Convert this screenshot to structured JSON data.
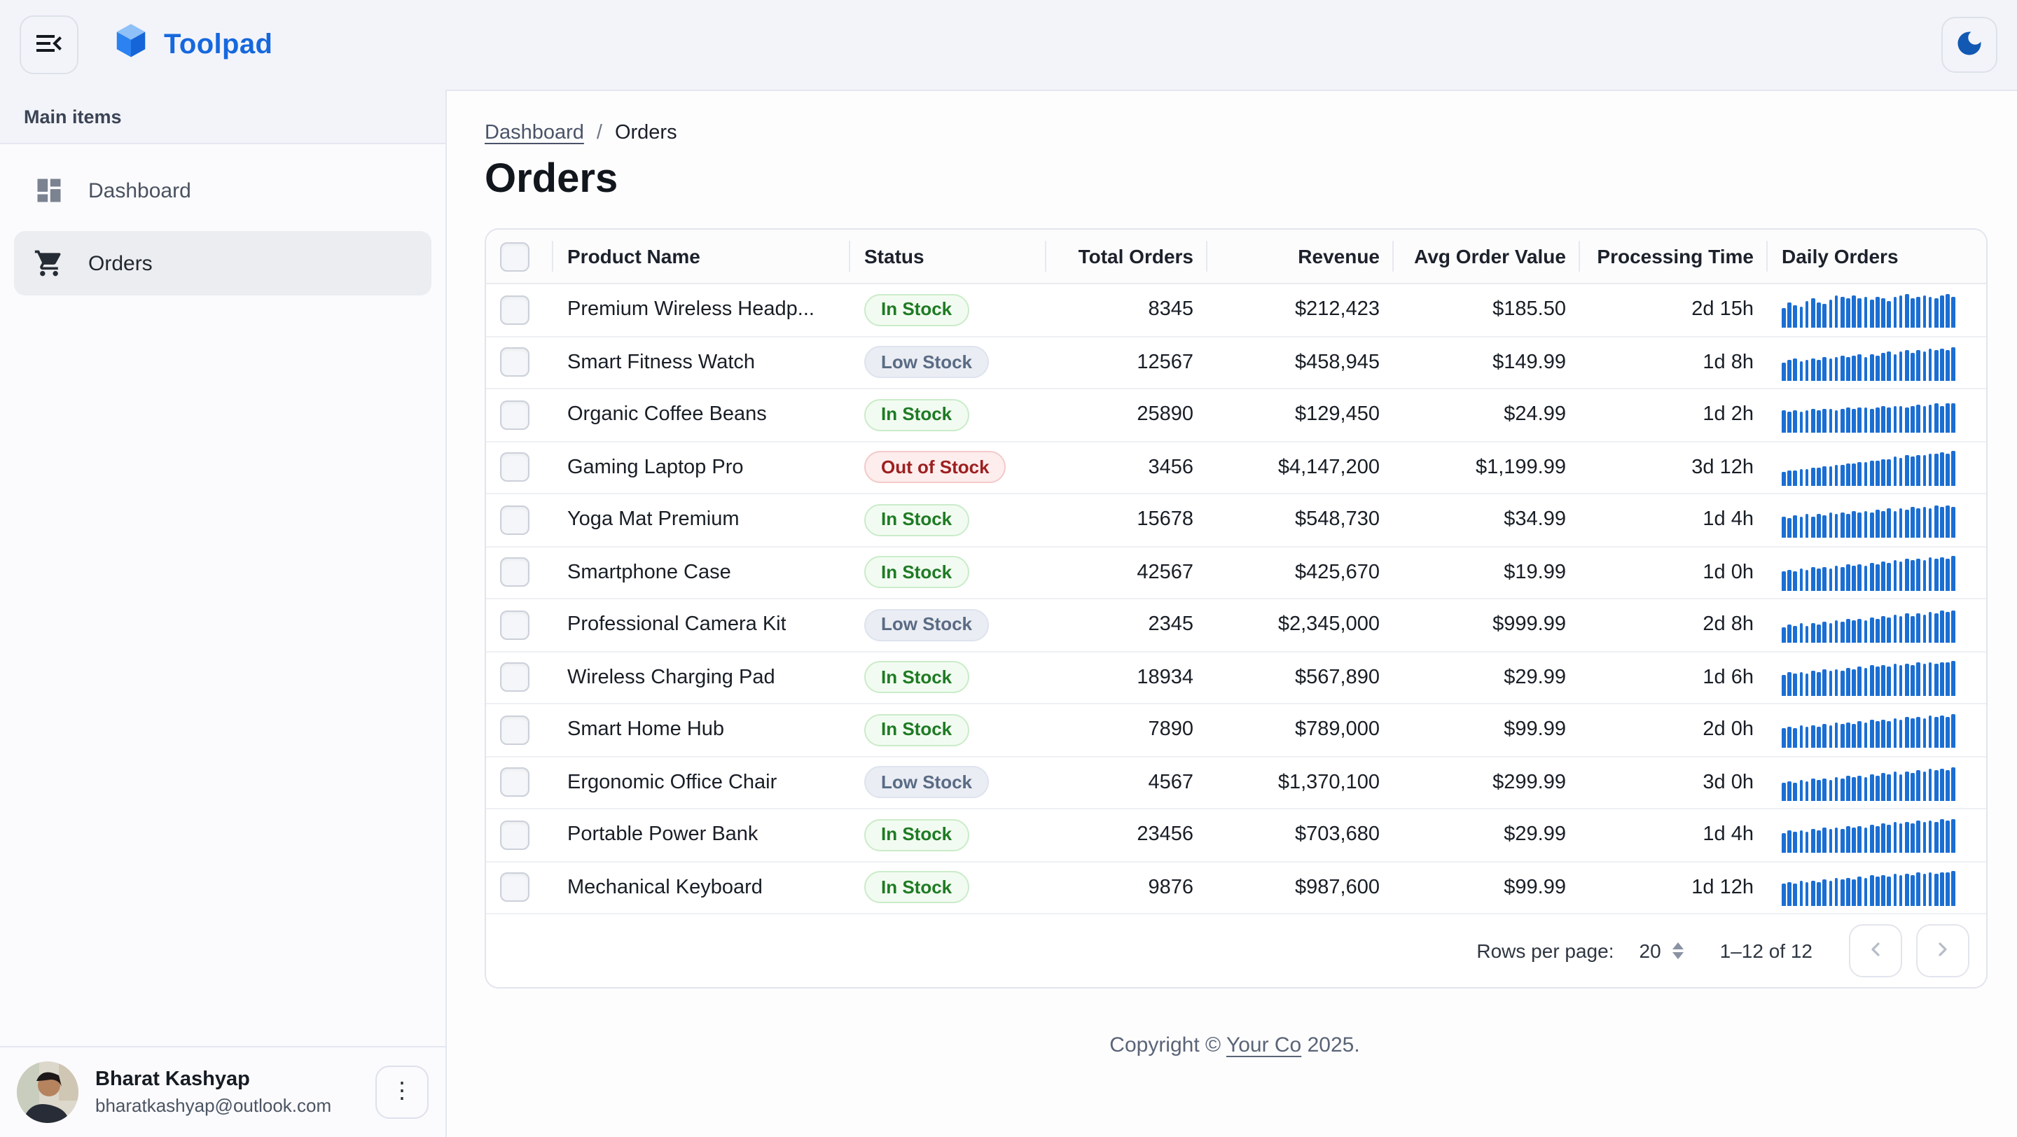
{
  "header": {
    "brand": "Toolpad"
  },
  "sidebar": {
    "section_label": "Main items",
    "items": [
      {
        "label": "Dashboard",
        "icon": "dashboard-icon",
        "selected": false
      },
      {
        "label": "Orders",
        "icon": "shopping-cart-icon",
        "selected": true
      }
    ],
    "user": {
      "name": "Bharat Kashyap",
      "email": "bharatkashyap@outlook.com"
    }
  },
  "breadcrumb": {
    "link": "Dashboard",
    "separator": "/",
    "current": "Orders"
  },
  "page": {
    "title": "Orders"
  },
  "table": {
    "columns": [
      "Product Name",
      "Status",
      "Total Orders",
      "Revenue",
      "Avg Order Value",
      "Processing Time",
      "Daily Orders"
    ],
    "rows": [
      {
        "product": "Premium Wireless Headp...",
        "status": "In Stock",
        "status_type": "in",
        "total": "8345",
        "revenue": "$212,423",
        "avg": "$185.50",
        "processing": "2d 15h",
        "spark": [
          55,
          72,
          64,
          58,
          75,
          80,
          70,
          66,
          78,
          90,
          85,
          82,
          88,
          80,
          84,
          78,
          86,
          82,
          76,
          84,
          88,
          92,
          80,
          85,
          90,
          86,
          82,
          88,
          95,
          85
        ]
      },
      {
        "product": "Smart Fitness Watch",
        "status": "Low Stock",
        "status_type": "low",
        "total": "12567",
        "revenue": "$458,945",
        "avg": "$149.99",
        "processing": "1d 8h",
        "spark": [
          50,
          56,
          60,
          54,
          58,
          62,
          57,
          64,
          60,
          66,
          70,
          64,
          68,
          72,
          66,
          74,
          70,
          76,
          80,
          74,
          78,
          82,
          76,
          84,
          80,
          86,
          82,
          88,
          84,
          92
        ]
      },
      {
        "product": "Organic Coffee Beans",
        "status": "In Stock",
        "status_type": "in",
        "total": "25890",
        "revenue": "$129,450",
        "avg": "$24.99",
        "processing": "1d 2h",
        "spark": [
          62,
          58,
          64,
          60,
          63,
          66,
          62,
          65,
          68,
          64,
          67,
          70,
          66,
          69,
          72,
          68,
          71,
          74,
          70,
          73,
          76,
          72,
          75,
          78,
          74,
          77,
          80,
          76,
          82,
          80
        ]
      },
      {
        "product": "Gaming Laptop Pro",
        "status": "Out of Stock",
        "status_type": "out",
        "total": "3456",
        "revenue": "$4,147,200",
        "avg": "$1,199.99",
        "processing": "3d 12h",
        "spark": [
          38,
          42,
          40,
          46,
          44,
          50,
          48,
          54,
          52,
          58,
          56,
          62,
          60,
          66,
          64,
          70,
          68,
          74,
          72,
          78,
          76,
          82,
          80,
          84,
          82,
          88,
          86,
          90,
          88,
          94
        ]
      },
      {
        "product": "Yoga Mat Premium",
        "status": "In Stock",
        "status_type": "in",
        "total": "15678",
        "revenue": "$548,730",
        "avg": "$34.99",
        "processing": "1d 4h",
        "spark": [
          60,
          55,
          62,
          58,
          65,
          60,
          68,
          63,
          70,
          66,
          72,
          68,
          74,
          70,
          76,
          72,
          78,
          74,
          80,
          76,
          82,
          78,
          84,
          80,
          86,
          82,
          88,
          84,
          90,
          86
        ]
      },
      {
        "product": "Smartphone Case",
        "status": "In Stock",
        "status_type": "in",
        "total": "42567",
        "revenue": "$425,670",
        "avg": "$19.99",
        "processing": "1d 0h",
        "spark": [
          52,
          58,
          54,
          60,
          56,
          63,
          59,
          66,
          62,
          68,
          64,
          71,
          67,
          74,
          70,
          77,
          73,
          80,
          76,
          83,
          79,
          86,
          82,
          88,
          84,
          90,
          87,
          92,
          89,
          94
        ]
      },
      {
        "product": "Professional Camera Kit",
        "status": "Low Stock",
        "status_type": "low",
        "total": "2345",
        "revenue": "$2,345,000",
        "avg": "$999.99",
        "processing": "2d 8h",
        "spark": [
          45,
          50,
          47,
          53,
          49,
          56,
          52,
          59,
          55,
          62,
          58,
          65,
          61,
          68,
          64,
          71,
          67,
          74,
          70,
          77,
          73,
          80,
          76,
          83,
          79,
          86,
          82,
          88,
          85,
          91
        ]
      },
      {
        "product": "Wireless Charging Pad",
        "status": "In Stock",
        "status_type": "in",
        "total": "18934",
        "revenue": "$567,890",
        "avg": "$29.99",
        "processing": "1d 6h",
        "spark": [
          58,
          63,
          60,
          66,
          62,
          69,
          65,
          72,
          68,
          74,
          70,
          77,
          73,
          79,
          75,
          82,
          78,
          84,
          80,
          86,
          82,
          88,
          84,
          90,
          86,
          92,
          88,
          93,
          90,
          95
        ]
      },
      {
        "product": "Smart Home Hub",
        "status": "In Stock",
        "status_type": "in",
        "total": "7890",
        "revenue": "$789,000",
        "avg": "$99.99",
        "processing": "2d 0h",
        "spark": [
          54,
          59,
          56,
          62,
          58,
          64,
          60,
          67,
          63,
          69,
          65,
          72,
          68,
          74,
          70,
          77,
          73,
          79,
          75,
          82,
          78,
          84,
          80,
          86,
          82,
          88,
          85,
          90,
          87,
          93
        ]
      },
      {
        "product": "Ergonomic Office Chair",
        "status": "Low Stock",
        "status_type": "low",
        "total": "4567",
        "revenue": "$1,370,100",
        "avg": "$299.99",
        "processing": "3d 0h",
        "spark": [
          48,
          53,
          50,
          56,
          52,
          59,
          55,
          62,
          58,
          64,
          60,
          67,
          63,
          70,
          66,
          72,
          68,
          75,
          71,
          78,
          74,
          80,
          76,
          83,
          79,
          86,
          82,
          88,
          84,
          91
        ]
      },
      {
        "product": "Portable Power Bank",
        "status": "In Stock",
        "status_type": "in",
        "total": "23456",
        "revenue": "$703,680",
        "avg": "$29.99",
        "processing": "1d 4h",
        "spark": [
          56,
          61,
          58,
          64,
          60,
          66,
          62,
          69,
          65,
          71,
          67,
          74,
          70,
          76,
          72,
          79,
          75,
          81,
          77,
          84,
          80,
          86,
          82,
          88,
          84,
          90,
          86,
          92,
          88,
          94
        ]
      },
      {
        "product": "Mechanical Keyboard",
        "status": "In Stock",
        "status_type": "in",
        "total": "9876",
        "revenue": "$987,600",
        "avg": "$99.99",
        "processing": "1d 12h",
        "spark": [
          60,
          65,
          62,
          68,
          64,
          70,
          66,
          72,
          68,
          75,
          71,
          77,
          73,
          80,
          76,
          82,
          78,
          84,
          80,
          86,
          82,
          88,
          84,
          90,
          86,
          91,
          88,
          93,
          90,
          95
        ]
      }
    ],
    "column_aligns": [
      "left",
      "left",
      "right",
      "right",
      "right",
      "right",
      "left"
    ]
  },
  "pagination": {
    "rows_per_page_label": "Rows per page:",
    "rows_per_page": "20",
    "range": "1–12 of 12"
  },
  "footer": {
    "prefix": "Copyright © ",
    "company": "Your Co",
    "suffix": " 2025."
  },
  "colors": {
    "accent_blue": "#1668dd",
    "spark_bar": "#1b6ed3",
    "in_stock_green": "#1e7b24",
    "low_stock_slate": "#5a6b84",
    "out_of_stock_red": "#9d1f1f",
    "topbar_bg": "#f3f4f9"
  }
}
